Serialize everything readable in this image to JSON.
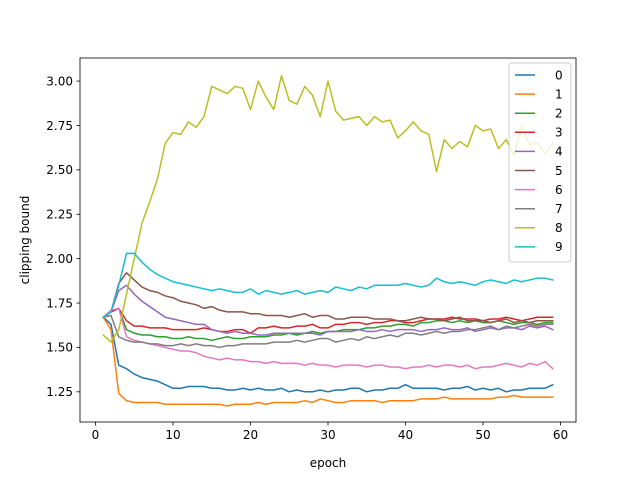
{
  "chart_data": {
    "type": "line",
    "title": "",
    "xlabel": "epoch",
    "ylabel": "clipping bound",
    "xlim": [
      -2,
      62
    ],
    "ylim": [
      1.08,
      3.13
    ],
    "xticks": [
      0,
      10,
      20,
      30,
      40,
      50,
      60
    ],
    "yticks": [
      1.25,
      1.5,
      1.75,
      2.0,
      2.25,
      2.5,
      2.75,
      3.0
    ],
    "ytick_labels": [
      "1.25",
      "1.50",
      "1.75",
      "2.00",
      "2.25",
      "2.50",
      "2.75",
      "3.00"
    ],
    "grid": false,
    "legend_position": "top-right",
    "x_start": 1,
    "series": [
      {
        "name": "0",
        "color": "#1f77b4",
        "values": [
          1.67,
          1.63,
          1.4,
          1.38,
          1.35,
          1.33,
          1.32,
          1.31,
          1.29,
          1.27,
          1.27,
          1.28,
          1.28,
          1.28,
          1.27,
          1.27,
          1.26,
          1.26,
          1.27,
          1.26,
          1.27,
          1.26,
          1.26,
          1.27,
          1.25,
          1.26,
          1.25,
          1.25,
          1.26,
          1.25,
          1.26,
          1.26,
          1.27,
          1.27,
          1.25,
          1.26,
          1.26,
          1.27,
          1.27,
          1.29,
          1.27,
          1.27,
          1.27,
          1.27,
          1.26,
          1.27,
          1.27,
          1.28,
          1.26,
          1.27,
          1.26,
          1.27,
          1.25,
          1.26,
          1.26,
          1.27,
          1.27,
          1.27,
          1.29
        ]
      },
      {
        "name": "1",
        "color": "#ff7f0e",
        "values": [
          1.67,
          1.6,
          1.24,
          1.2,
          1.19,
          1.19,
          1.19,
          1.19,
          1.18,
          1.18,
          1.18,
          1.18,
          1.18,
          1.18,
          1.18,
          1.18,
          1.17,
          1.18,
          1.18,
          1.18,
          1.19,
          1.18,
          1.19,
          1.19,
          1.19,
          1.19,
          1.2,
          1.19,
          1.21,
          1.2,
          1.19,
          1.19,
          1.2,
          1.2,
          1.2,
          1.2,
          1.19,
          1.2,
          1.2,
          1.2,
          1.2,
          1.21,
          1.21,
          1.21,
          1.22,
          1.21,
          1.21,
          1.21,
          1.21,
          1.21,
          1.21,
          1.22,
          1.22,
          1.23,
          1.22,
          1.22,
          1.22,
          1.22,
          1.22
        ]
      },
      {
        "name": "2",
        "color": "#2ca02c",
        "values": [
          1.67,
          1.7,
          1.72,
          1.6,
          1.58,
          1.57,
          1.57,
          1.56,
          1.56,
          1.55,
          1.55,
          1.56,
          1.55,
          1.55,
          1.54,
          1.55,
          1.56,
          1.55,
          1.55,
          1.56,
          1.56,
          1.56,
          1.57,
          1.57,
          1.58,
          1.57,
          1.58,
          1.59,
          1.58,
          1.59,
          1.59,
          1.6,
          1.6,
          1.6,
          1.61,
          1.61,
          1.62,
          1.62,
          1.63,
          1.63,
          1.62,
          1.64,
          1.64,
          1.65,
          1.65,
          1.64,
          1.65,
          1.64,
          1.65,
          1.64,
          1.64,
          1.65,
          1.64,
          1.63,
          1.64,
          1.64,
          1.63,
          1.64,
          1.64
        ]
      },
      {
        "name": "3",
        "color": "#d62728",
        "values": [
          1.67,
          1.7,
          1.72,
          1.65,
          1.62,
          1.62,
          1.61,
          1.61,
          1.61,
          1.6,
          1.6,
          1.6,
          1.6,
          1.61,
          1.6,
          1.59,
          1.59,
          1.6,
          1.6,
          1.58,
          1.61,
          1.61,
          1.62,
          1.61,
          1.61,
          1.62,
          1.62,
          1.63,
          1.61,
          1.61,
          1.63,
          1.63,
          1.64,
          1.64,
          1.63,
          1.64,
          1.64,
          1.65,
          1.65,
          1.64,
          1.64,
          1.65,
          1.66,
          1.66,
          1.66,
          1.67,
          1.66,
          1.66,
          1.66,
          1.65,
          1.66,
          1.66,
          1.67,
          1.66,
          1.65,
          1.66,
          1.67,
          1.67,
          1.67
        ]
      },
      {
        "name": "4",
        "color": "#9467bd",
        "values": [
          1.67,
          1.7,
          1.82,
          1.85,
          1.8,
          1.76,
          1.73,
          1.7,
          1.67,
          1.66,
          1.65,
          1.64,
          1.63,
          1.63,
          1.6,
          1.59,
          1.58,
          1.59,
          1.58,
          1.58,
          1.57,
          1.57,
          1.58,
          1.58,
          1.58,
          1.58,
          1.58,
          1.58,
          1.57,
          1.59,
          1.59,
          1.59,
          1.59,
          1.6,
          1.59,
          1.59,
          1.6,
          1.59,
          1.6,
          1.6,
          1.6,
          1.59,
          1.6,
          1.6,
          1.61,
          1.6,
          1.6,
          1.61,
          1.59,
          1.6,
          1.61,
          1.6,
          1.61,
          1.61,
          1.6,
          1.62,
          1.61,
          1.62,
          1.6
        ]
      },
      {
        "name": "5",
        "color": "#8c564b",
        "values": [
          1.67,
          1.7,
          1.86,
          1.92,
          1.88,
          1.84,
          1.82,
          1.81,
          1.79,
          1.78,
          1.76,
          1.75,
          1.74,
          1.72,
          1.73,
          1.71,
          1.7,
          1.7,
          1.7,
          1.69,
          1.69,
          1.68,
          1.68,
          1.68,
          1.67,
          1.68,
          1.69,
          1.67,
          1.68,
          1.68,
          1.66,
          1.66,
          1.67,
          1.67,
          1.67,
          1.66,
          1.66,
          1.66,
          1.65,
          1.65,
          1.66,
          1.67,
          1.66,
          1.66,
          1.65,
          1.66,
          1.67,
          1.65,
          1.65,
          1.65,
          1.64,
          1.65,
          1.66,
          1.64,
          1.65,
          1.64,
          1.65,
          1.65,
          1.65
        ]
      },
      {
        "name": "6",
        "color": "#e377c2",
        "values": [
          1.67,
          1.71,
          1.72,
          1.56,
          1.54,
          1.53,
          1.52,
          1.51,
          1.5,
          1.49,
          1.48,
          1.48,
          1.47,
          1.45,
          1.44,
          1.43,
          1.44,
          1.43,
          1.43,
          1.42,
          1.42,
          1.41,
          1.42,
          1.41,
          1.41,
          1.41,
          1.4,
          1.41,
          1.4,
          1.4,
          1.39,
          1.4,
          1.4,
          1.4,
          1.39,
          1.4,
          1.4,
          1.39,
          1.39,
          1.38,
          1.39,
          1.39,
          1.4,
          1.39,
          1.4,
          1.4,
          1.39,
          1.4,
          1.38,
          1.39,
          1.39,
          1.4,
          1.41,
          1.4,
          1.39,
          1.41,
          1.4,
          1.42,
          1.38
        ]
      },
      {
        "name": "7",
        "color": "#7f7f7f",
        "values": [
          1.67,
          1.68,
          1.56,
          1.54,
          1.53,
          1.53,
          1.52,
          1.52,
          1.51,
          1.51,
          1.52,
          1.51,
          1.52,
          1.51,
          1.51,
          1.5,
          1.51,
          1.51,
          1.52,
          1.52,
          1.52,
          1.52,
          1.53,
          1.53,
          1.53,
          1.54,
          1.53,
          1.54,
          1.55,
          1.55,
          1.53,
          1.54,
          1.55,
          1.54,
          1.56,
          1.55,
          1.56,
          1.57,
          1.56,
          1.58,
          1.58,
          1.57,
          1.58,
          1.59,
          1.58,
          1.59,
          1.59,
          1.6,
          1.6,
          1.61,
          1.62,
          1.6,
          1.62,
          1.61,
          1.62,
          1.63,
          1.62,
          1.63,
          1.63
        ]
      },
      {
        "name": "8",
        "color": "#bcbd22",
        "values": [
          1.57,
          1.53,
          1.6,
          1.8,
          2.0,
          2.2,
          2.32,
          2.45,
          2.65,
          2.71,
          2.7,
          2.77,
          2.74,
          2.8,
          2.97,
          2.95,
          2.93,
          2.97,
          2.96,
          2.84,
          3.0,
          2.91,
          2.84,
          3.03,
          2.89,
          2.87,
          2.97,
          2.92,
          2.8,
          3.0,
          2.83,
          2.78,
          2.79,
          2.8,
          2.75,
          2.8,
          2.77,
          2.78,
          2.68,
          2.72,
          2.77,
          2.72,
          2.7,
          2.49,
          2.67,
          2.62,
          2.66,
          2.63,
          2.75,
          2.72,
          2.73,
          2.62,
          2.67,
          2.58,
          2.75,
          2.64,
          2.65,
          2.59,
          2.65
        ]
      },
      {
        "name": "9",
        "color": "#17becf",
        "values": [
          1.67,
          1.7,
          1.85,
          2.03,
          2.03,
          1.98,
          1.94,
          1.91,
          1.89,
          1.87,
          1.86,
          1.85,
          1.84,
          1.83,
          1.82,
          1.83,
          1.82,
          1.81,
          1.81,
          1.83,
          1.8,
          1.82,
          1.81,
          1.8,
          1.81,
          1.82,
          1.8,
          1.81,
          1.82,
          1.81,
          1.84,
          1.83,
          1.82,
          1.84,
          1.83,
          1.85,
          1.85,
          1.85,
          1.85,
          1.86,
          1.85,
          1.84,
          1.85,
          1.89,
          1.87,
          1.86,
          1.87,
          1.86,
          1.85,
          1.87,
          1.88,
          1.87,
          1.86,
          1.88,
          1.87,
          1.88,
          1.89,
          1.89,
          1.88
        ]
      }
    ]
  }
}
